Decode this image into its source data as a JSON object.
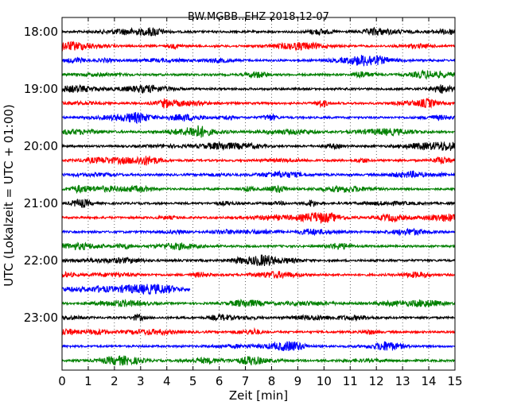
{
  "chart_data": {
    "type": "line",
    "title": "BW.MGBB..EHZ 2018-12-07",
    "xlabel": "Zeit  [min]",
    "ylabel": "UTC (Lokalzeit = UTC + 01:00)",
    "xlim": [
      0,
      15
    ],
    "x_ticks": [
      "0",
      "1",
      "2",
      "3",
      "4",
      "5",
      "6",
      "7",
      "8",
      "9",
      "10",
      "11",
      "12",
      "13",
      "14",
      "15"
    ],
    "y_ticks": [
      "18:00",
      "19:00",
      "20:00",
      "21:00",
      "22:00",
      "23:00"
    ],
    "vertical_grid": "dotted",
    "trace_colors": [
      "#000000",
      "#ff0000",
      "#0000ff",
      "#008000"
    ],
    "traces": [
      {
        "start": "18:00",
        "end_min": 15
      },
      {
        "start": "18:15",
        "end_min": 15
      },
      {
        "start": "18:30",
        "end_min": 15
      },
      {
        "start": "18:45",
        "end_min": 15
      },
      {
        "start": "19:00",
        "end_min": 15
      },
      {
        "start": "19:15",
        "end_min": 15
      },
      {
        "start": "19:30",
        "end_min": 15
      },
      {
        "start": "19:45",
        "end_min": 15
      },
      {
        "start": "20:00",
        "end_min": 15
      },
      {
        "start": "20:15",
        "end_min": 15
      },
      {
        "start": "20:30",
        "end_min": 15
      },
      {
        "start": "20:45",
        "end_min": 15
      },
      {
        "start": "21:00",
        "end_min": 15
      },
      {
        "start": "21:15",
        "end_min": 15
      },
      {
        "start": "21:30",
        "end_min": 15
      },
      {
        "start": "21:45",
        "end_min": 15
      },
      {
        "start": "22:00",
        "end_min": 15
      },
      {
        "start": "22:15",
        "end_min": 15
      },
      {
        "start": "22:30",
        "end_min": 4.9
      },
      {
        "start": "22:45",
        "end_min": 15
      },
      {
        "start": "23:00",
        "end_min": 15
      },
      {
        "start": "23:15",
        "end_min": 15
      },
      {
        "start": "23:30",
        "end_min": 15
      },
      {
        "start": "23:45",
        "end_min": 15
      }
    ]
  }
}
